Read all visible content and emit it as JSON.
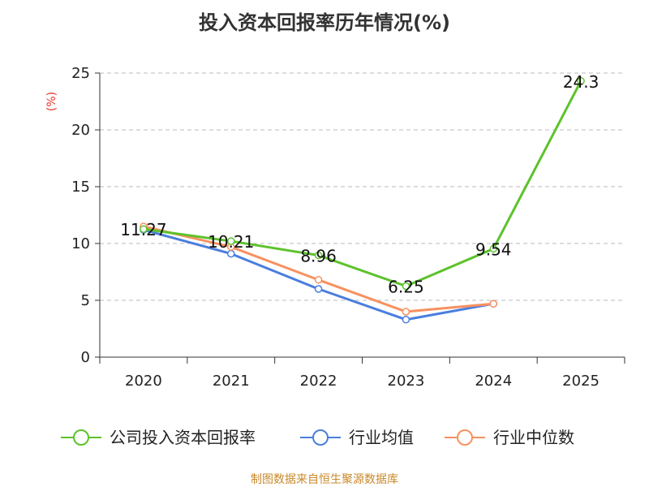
{
  "chart_data": {
    "type": "line",
    "title": "投入资本回报率历年情况(%)",
    "ylabel": "(%)",
    "xlabel": "",
    "categories": [
      "2020",
      "2021",
      "2022",
      "2023",
      "2024",
      "2025"
    ],
    "ylim": [
      0,
      25
    ],
    "yticks": [
      0,
      5,
      10,
      15,
      20,
      25
    ],
    "grid": true,
    "legend_position": "bottom",
    "series": [
      {
        "name": "公司投入资本回报率",
        "color": "#5dc22c",
        "values": [
          11.27,
          10.21,
          8.96,
          6.25,
          9.54,
          24.3
        ],
        "labels": [
          "11.27",
          "10.21",
          "8.96",
          "6.25",
          "9.54",
          "24.3"
        ]
      },
      {
        "name": "行业均值",
        "color": "#4a7ede",
        "values": [
          11.2,
          9.1,
          6.0,
          3.3,
          4.7,
          null
        ]
      },
      {
        "name": "行业中位数",
        "color": "#f79160",
        "values": [
          11.5,
          9.7,
          6.8,
          4.0,
          4.7,
          null
        ]
      }
    ]
  },
  "footer": {
    "source": "制图数据来自恒生聚源数据库"
  }
}
